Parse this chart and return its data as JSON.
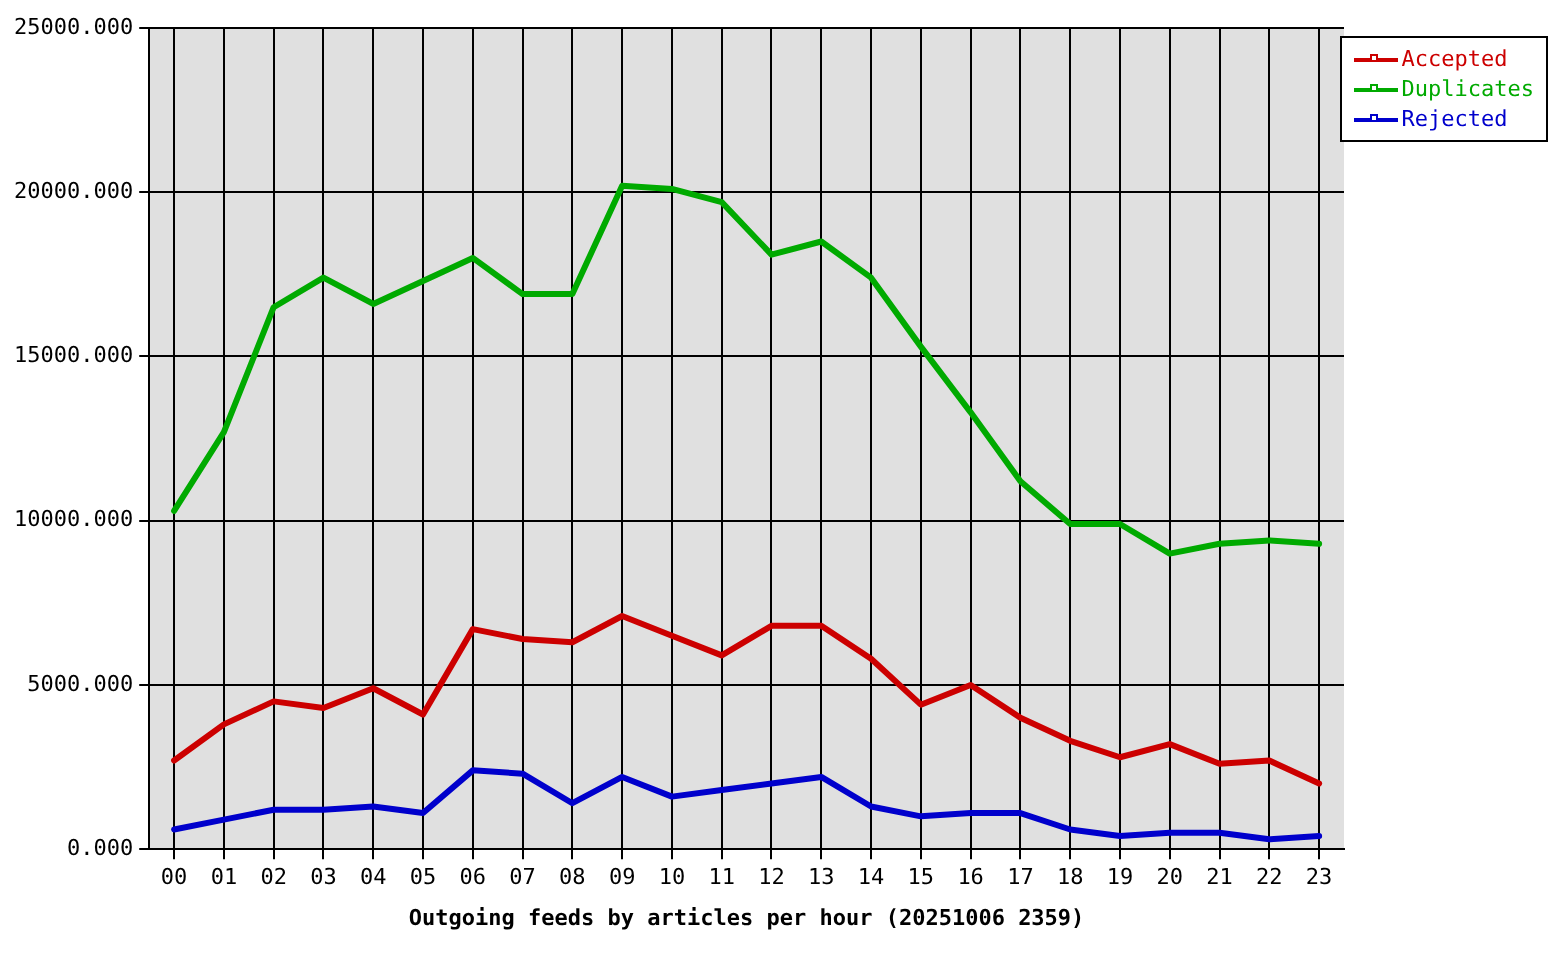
{
  "chart_data": {
    "type": "line",
    "xlabel": "Outgoing feeds by articles per hour (20251006 2359)",
    "categories": [
      "00",
      "01",
      "02",
      "03",
      "04",
      "05",
      "06",
      "07",
      "08",
      "09",
      "10",
      "11",
      "12",
      "13",
      "14",
      "15",
      "16",
      "17",
      "18",
      "19",
      "20",
      "21",
      "22",
      "23"
    ],
    "series": [
      {
        "name": "Accepted",
        "color": "#cc0000",
        "values": [
          2700,
          3800,
          4500,
          4300,
          4900,
          4100,
          6700,
          6400,
          6300,
          7100,
          6500,
          5900,
          6800,
          6800,
          5800,
          4400,
          5000,
          4000,
          3300,
          2800,
          3200,
          2600,
          2700,
          2000
        ]
      },
      {
        "name": "Duplicates",
        "color": "#00aa00",
        "values": [
          10300,
          12700,
          16500,
          17400,
          16600,
          17300,
          18000,
          16900,
          16900,
          20200,
          20100,
          19700,
          18100,
          18500,
          17400,
          15300,
          13300,
          11200,
          9900,
          9900,
          9000,
          9300,
          9400,
          9300
        ]
      },
      {
        "name": "Rejected",
        "color": "#0000cc",
        "values": [
          600,
          900,
          1200,
          1200,
          1300,
          1100,
          2400,
          2300,
          1400,
          2200,
          1600,
          1800,
          2000,
          2200,
          1300,
          1000,
          1100,
          1100,
          600,
          400,
          500,
          500,
          300,
          400
        ]
      }
    ],
    "ylim": [
      0,
      25000
    ],
    "yticks": [
      {
        "value": 0,
        "label": "0.000"
      },
      {
        "value": 5000,
        "label": "5000.000"
      },
      {
        "value": 10000,
        "label": "10000.000"
      },
      {
        "value": 15000,
        "label": "15000.000"
      },
      {
        "value": 20000,
        "label": "20000.000"
      },
      {
        "value": 25000,
        "label": "25000.000"
      }
    ],
    "grid": true,
    "legend": "top right",
    "marker": "none",
    "line_style": "solid"
  }
}
